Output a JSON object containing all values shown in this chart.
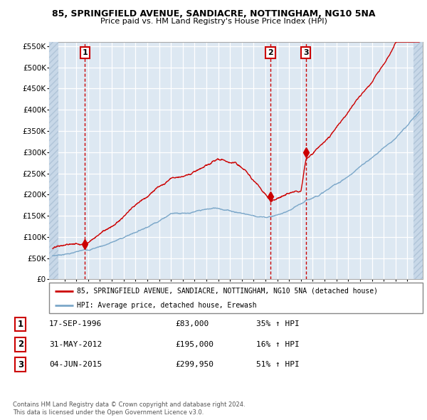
{
  "title_line1": "85, SPRINGFIELD AVENUE, SANDIACRE, NOTTINGHAM, NG10 5NA",
  "title_line2": "Price paid vs. HM Land Registry's House Price Index (HPI)",
  "legend_label1": "85, SPRINGFIELD AVENUE, SANDIACRE, NOTTINGHAM, NG10 5NA (detached house)",
  "legend_label2": "HPI: Average price, detached house, Erewash",
  "sales": [
    {
      "label": "1",
      "date_num": 1996.72,
      "price": 83000
    },
    {
      "label": "2",
      "date_num": 2012.42,
      "price": 195000
    },
    {
      "label": "3",
      "date_num": 2015.42,
      "price": 299950
    }
  ],
  "table_rows": [
    {
      "num": "1",
      "date": "17-SEP-1996",
      "price": "£83,000",
      "hpi": "35% ↑ HPI"
    },
    {
      "num": "2",
      "date": "31-MAY-2012",
      "price": "£195,000",
      "hpi": "16% ↑ HPI"
    },
    {
      "num": "3",
      "date": "04-JUN-2015",
      "price": "£299,950",
      "hpi": "51% ↑ HPI"
    }
  ],
  "footnote1": "Contains HM Land Registry data © Crown copyright and database right 2024.",
  "footnote2": "This data is licensed under the Open Government Licence v3.0.",
  "red_line_color": "#cc0000",
  "blue_line_color": "#7ba7c9",
  "dashed_line_color": "#cc0000",
  "grid_color": "#c8d8e8",
  "bg_color": "#dde8f2",
  "ylim": [
    0,
    560000
  ],
  "yticks": [
    0,
    50000,
    100000,
    150000,
    200000,
    250000,
    300000,
    350000,
    400000,
    450000,
    500000,
    550000
  ],
  "xmin": 1993.7,
  "xmax": 2025.3,
  "x_data_start": 1994,
  "x_data_end": 2025
}
